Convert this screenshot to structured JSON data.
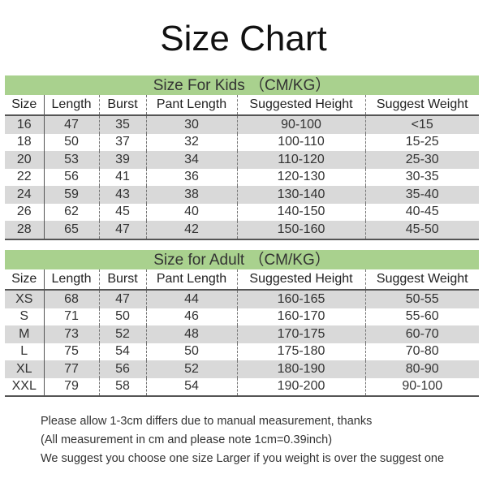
{
  "title": "Size Chart",
  "columns": [
    "Size",
    "Length",
    "Burst",
    "Pant Length",
    "Suggested Height",
    "Suggest Weight"
  ],
  "kids": {
    "heading": "Size For Kids （CM/KG）",
    "rows": [
      [
        "16",
        "47",
        "35",
        "30",
        "90-100",
        "<15"
      ],
      [
        "18",
        "50",
        "37",
        "32",
        "100-110",
        "15-25"
      ],
      [
        "20",
        "53",
        "39",
        "34",
        "110-120",
        "25-30"
      ],
      [
        "22",
        "56",
        "41",
        "36",
        "120-130",
        "30-35"
      ],
      [
        "24",
        "59",
        "43",
        "38",
        "130-140",
        "35-40"
      ],
      [
        "26",
        "62",
        "45",
        "40",
        "140-150",
        "40-45"
      ],
      [
        "28",
        "65",
        "47",
        "42",
        "150-160",
        "45-50"
      ]
    ]
  },
  "adult": {
    "heading": "Size for Adult （CM/KG）",
    "rows": [
      [
        "XS",
        "68",
        "47",
        "44",
        "160-165",
        "50-55"
      ],
      [
        "S",
        "71",
        "50",
        "46",
        "160-170",
        "55-60"
      ],
      [
        "M",
        "73",
        "52",
        "48",
        "170-175",
        "60-70"
      ],
      [
        "L",
        "75",
        "54",
        "50",
        "175-180",
        "70-80"
      ],
      [
        "XL",
        "77",
        "56",
        "52",
        "180-190",
        "80-90"
      ],
      [
        "XXL",
        "79",
        "58",
        "54",
        "190-200",
        "90-100"
      ]
    ]
  },
  "notes": [
    "Please allow 1-3cm differs due to manual measurement, thanks",
    "(All measurement in cm and please note 1cm=0.39inch)",
    "We suggest you choose one size Larger if you weight is over the suggest one"
  ],
  "colors": {
    "band": "#a9d18e",
    "stripe": "#d9d9d9"
  }
}
